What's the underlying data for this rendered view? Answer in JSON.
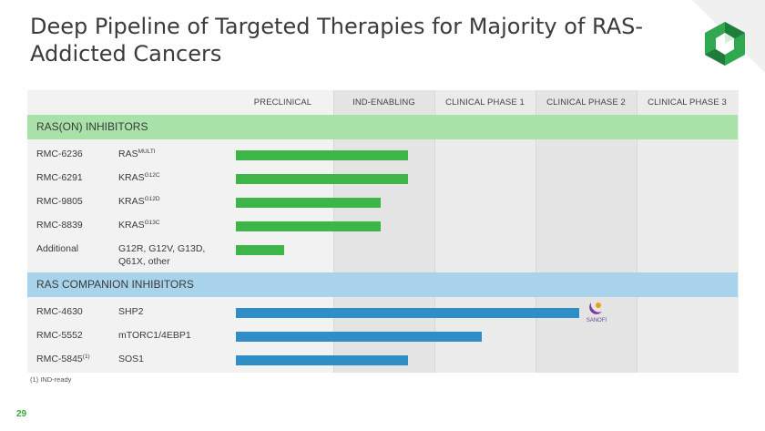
{
  "slide": {
    "title": "Deep Pipeline of Targeted Therapies for Majority of RAS-Addicted Cancers",
    "page_number": "29",
    "footnote": "(1) IND-ready"
  },
  "colors": {
    "green_bar": "#3db548",
    "blue_bar": "#2f8ec6",
    "section1_band": "#a8e2a9",
    "section2_band": "#a8d3ea",
    "title_text": "#3b3b3b",
    "page_number": "#3aa935"
  },
  "phases": [
    "PRECLINICAL",
    "IND-ENABLING",
    "CLINICAL PHASE 1",
    "CLINICAL PHASE 2",
    "CLINICAL PHASE 3"
  ],
  "sections": [
    {
      "title": "RAS(ON) INHIBITORS",
      "color": "green",
      "programs": [
        {
          "drug": "RMC-6236",
          "drug_sup": "",
          "target": "RAS",
          "target_sup": "MULTI",
          "progress_phases": 1.7
        },
        {
          "drug": "RMC-6291",
          "drug_sup": "",
          "target": "KRAS",
          "target_sup": "G12C",
          "progress_phases": 1.7
        },
        {
          "drug": "RMC-9805",
          "drug_sup": "",
          "target": "KRAS",
          "target_sup": "G12D",
          "progress_phases": 1.43
        },
        {
          "drug": "RMC-8839",
          "drug_sup": "",
          "target": "KRAS",
          "target_sup": "G13C",
          "progress_phases": 1.43
        },
        {
          "drug": "Additional",
          "drug_sup": "",
          "target": "G12R, G12V, G13D, Q61X, other",
          "target_sup": "",
          "progress_phases": 0.48
        }
      ]
    },
    {
      "title": "RAS COMPANION INHIBITORS",
      "color": "blue",
      "programs": [
        {
          "drug": "RMC-4630",
          "drug_sup": "",
          "target": "SHP2",
          "target_sup": "",
          "progress_phases": 3.4,
          "partner": "SANOFI"
        },
        {
          "drug": "RMC-5552",
          "drug_sup": "",
          "target": "mTORC1/4EBP1",
          "target_sup": "",
          "progress_phases": 2.43
        },
        {
          "drug": "RMC-5845",
          "drug_sup": "(1)",
          "target": "SOS1",
          "target_sup": "",
          "progress_phases": 1.7
        }
      ]
    }
  ]
}
